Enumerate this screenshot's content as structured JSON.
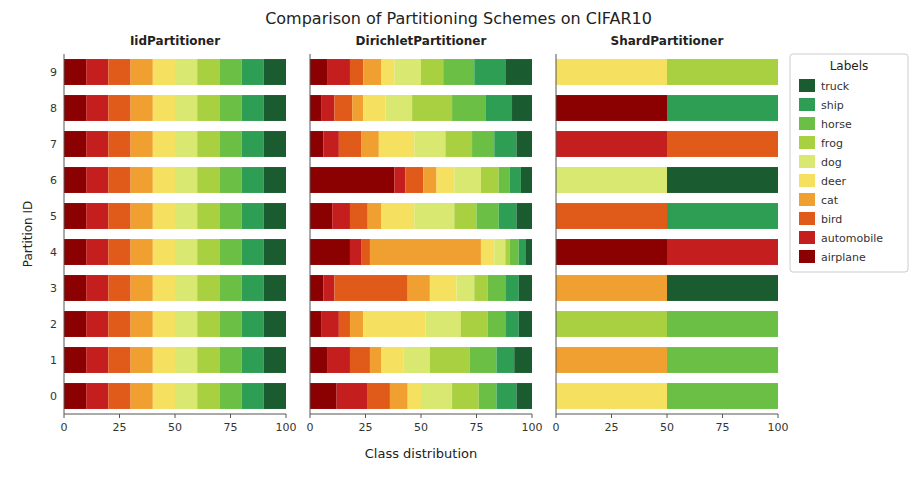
{
  "title": "Comparison of Partitioning Schemes on CIFAR10",
  "xlabel": "Class distribution",
  "chart_data": [
    {
      "type": "bar",
      "orientation": "horizontal",
      "stacked": true,
      "grid": false,
      "title": "IidPartitioner",
      "ylabel": "Partition ID",
      "categories": [
        "0",
        "1",
        "2",
        "3",
        "4",
        "5",
        "6",
        "7",
        "8",
        "9"
      ],
      "xlim": [
        0,
        100
      ],
      "xticks": [
        0,
        25,
        50,
        75,
        100
      ],
      "series": [
        {
          "name": "airplane",
          "color": "#8B0000",
          "values": [
            10,
            10,
            10,
            10,
            10,
            10,
            10,
            10,
            10,
            10
          ]
        },
        {
          "name": "automobile",
          "color": "#C41E1E",
          "values": [
            10,
            10,
            10,
            10,
            10,
            10,
            10,
            10,
            10,
            10
          ]
        },
        {
          "name": "bird",
          "color": "#E05A1A",
          "values": [
            10,
            10,
            10,
            10,
            10,
            10,
            10,
            10,
            10,
            10
          ]
        },
        {
          "name": "cat",
          "color": "#F0A030",
          "values": [
            10,
            10,
            10,
            10,
            10,
            10,
            10,
            10,
            10,
            10
          ]
        },
        {
          "name": "deer",
          "color": "#F5E060",
          "values": [
            10,
            10,
            10,
            10,
            10,
            10,
            10,
            10,
            10,
            10
          ]
        },
        {
          "name": "dog",
          "color": "#D8E870",
          "values": [
            10,
            10,
            10,
            10,
            10,
            10,
            10,
            10,
            10,
            10
          ]
        },
        {
          "name": "frog",
          "color": "#A8D040",
          "values": [
            10,
            10,
            10,
            10,
            10,
            10,
            10,
            10,
            10,
            10
          ]
        },
        {
          "name": "horse",
          "color": "#6BBF45",
          "values": [
            10,
            10,
            10,
            10,
            10,
            10,
            10,
            10,
            10,
            10
          ]
        },
        {
          "name": "ship",
          "color": "#2E9E55",
          "values": [
            10,
            10,
            10,
            10,
            10,
            10,
            10,
            10,
            10,
            10
          ]
        },
        {
          "name": "truck",
          "color": "#1A5C30",
          "values": [
            10,
            10,
            10,
            10,
            10,
            10,
            10,
            10,
            10,
            10
          ]
        }
      ]
    },
    {
      "type": "bar",
      "orientation": "horizontal",
      "stacked": true,
      "grid": false,
      "title": "DirichletPartitioner",
      "tick_labels": "x",
      "categories": [
        null,
        null,
        null,
        null,
        null,
        null,
        null,
        null,
        null,
        null
      ],
      "xlim": [
        0,
        100
      ],
      "xticks": [
        0,
        25,
        50,
        75,
        100
      ],
      "series": [
        {
          "name": "airplane",
          "color": "#8B0000",
          "values": [
            12,
            8,
            5,
            6,
            18,
            10,
            38,
            6,
            5,
            8
          ]
        },
        {
          "name": "automobile",
          "color": "#C41E1E",
          "values": [
            14,
            10,
            8,
            5,
            5,
            8,
            5,
            7,
            6,
            10
          ]
        },
        {
          "name": "bird",
          "color": "#E05A1A",
          "values": [
            10,
            9,
            5,
            33,
            4,
            8,
            8,
            10,
            8,
            6
          ]
        },
        {
          "name": "cat",
          "color": "#F0A030",
          "values": [
            8,
            5,
            6,
            10,
            50,
            6,
            6,
            8,
            5,
            8
          ]
        },
        {
          "name": "deer",
          "color": "#F5E060",
          "values": [
            6,
            10,
            28,
            12,
            6,
            15,
            8,
            16,
            10,
            6
          ]
        },
        {
          "name": "dog",
          "color": "#D8E870",
          "values": [
            14,
            12,
            16,
            8,
            5,
            18,
            12,
            14,
            12,
            12
          ]
        },
        {
          "name": "frog",
          "color": "#A8D040",
          "values": [
            12,
            18,
            12,
            6,
            2,
            10,
            8,
            12,
            18,
            10
          ]
        },
        {
          "name": "horse",
          "color": "#6BBF45",
          "values": [
            8,
            12,
            8,
            8,
            4,
            10,
            5,
            10,
            15,
            14
          ]
        },
        {
          "name": "ship",
          "color": "#2E9E55",
          "values": [
            9,
            8,
            6,
            6,
            3,
            8,
            5,
            10,
            12,
            14
          ]
        },
        {
          "name": "truck",
          "color": "#1A5C30",
          "values": [
            7,
            8,
            6,
            6,
            3,
            7,
            5,
            7,
            9,
            12
          ]
        }
      ]
    },
    {
      "type": "bar",
      "orientation": "horizontal",
      "stacked": true,
      "grid": false,
      "title": "ShardPartitioner",
      "tick_labels": "x",
      "legend": "right",
      "legend_title": "Labels",
      "categories": [
        null,
        null,
        null,
        null,
        null,
        null,
        null,
        null,
        null,
        null
      ],
      "xlim": [
        0,
        100
      ],
      "xticks": [
        0,
        25,
        50,
        75,
        100
      ],
      "series": [
        {
          "name": "airplane",
          "color": "#8B0000",
          "values": [
            0,
            0,
            0,
            0,
            50,
            0,
            0,
            0,
            50,
            0
          ]
        },
        {
          "name": "automobile",
          "color": "#C41E1E",
          "values": [
            0,
            0,
            0,
            0,
            50,
            0,
            0,
            50,
            0,
            0
          ]
        },
        {
          "name": "bird",
          "color": "#E05A1A",
          "values": [
            0,
            0,
            0,
            0,
            0,
            50,
            0,
            50,
            0,
            0
          ]
        },
        {
          "name": "cat",
          "color": "#F0A030",
          "values": [
            0,
            50,
            0,
            50,
            0,
            0,
            0,
            0,
            0,
            0
          ]
        },
        {
          "name": "deer",
          "color": "#F5E060",
          "values": [
            50,
            0,
            0,
            0,
            0,
            0,
            0,
            0,
            0,
            50
          ]
        },
        {
          "name": "dog",
          "color": "#D8E870",
          "values": [
            0,
            0,
            0,
            0,
            0,
            0,
            50,
            0,
            0,
            0
          ]
        },
        {
          "name": "frog",
          "color": "#A8D040",
          "values": [
            0,
            0,
            50,
            0,
            0,
            0,
            0,
            0,
            0,
            50
          ]
        },
        {
          "name": "horse",
          "color": "#6BBF45",
          "values": [
            50,
            50,
            50,
            0,
            0,
            0,
            0,
            0,
            0,
            0
          ]
        },
        {
          "name": "ship",
          "color": "#2E9E55",
          "values": [
            0,
            0,
            0,
            0,
            0,
            50,
            0,
            0,
            50,
            0
          ]
        },
        {
          "name": "truck",
          "color": "#1A5C30",
          "values": [
            0,
            0,
            0,
            50,
            0,
            0,
            50,
            0,
            0,
            0
          ]
        }
      ]
    }
  ]
}
